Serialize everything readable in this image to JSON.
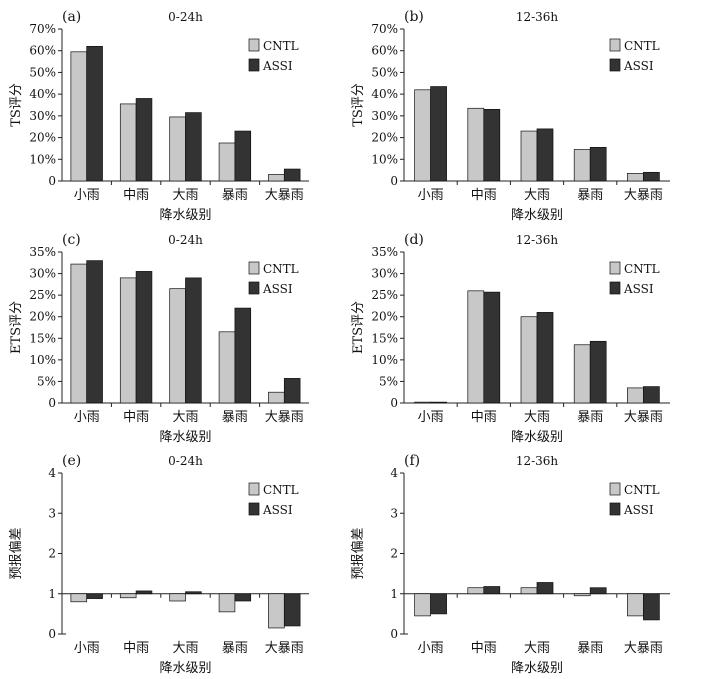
{
  "chart_data": [
    {
      "type": "bar",
      "panel_label": "(a)",
      "title": "0-24h",
      "ylabel": "TS评分",
      "xlabel": "降水级别",
      "categories": [
        "小雨",
        "中雨",
        "大雨",
        "暴雨",
        "大暴雨"
      ],
      "ylim": [
        0,
        70
      ],
      "yticks": [
        "0",
        "10%",
        "20%",
        "30%",
        "40%",
        "50%",
        "60%",
        "70%"
      ],
      "legend": "top-right",
      "series": [
        {
          "name": "CNTL",
          "color": "#c8c8c8",
          "values": [
            59.5,
            35.5,
            29.5,
            17.5,
            3
          ]
        },
        {
          "name": "ASSI",
          "color": "#333333",
          "values": [
            62,
            38,
            31.5,
            23,
            5.5
          ]
        }
      ]
    },
    {
      "type": "bar",
      "panel_label": "(b)",
      "title": "12-36h",
      "ylabel": "TS评分",
      "xlabel": "降水级别",
      "categories": [
        "小雨",
        "中雨",
        "大雨",
        "暴雨",
        "大暴雨"
      ],
      "ylim": [
        0,
        70
      ],
      "yticks": [
        "0",
        "10%",
        "20%",
        "30%",
        "40%",
        "50%",
        "60%",
        "70%"
      ],
      "legend": "top-right",
      "series": [
        {
          "name": "CNTL",
          "color": "#c8c8c8",
          "values": [
            42,
            33.5,
            23,
            14.5,
            3.5
          ]
        },
        {
          "name": "ASSI",
          "color": "#333333",
          "values": [
            43.5,
            33,
            24,
            15.5,
            4
          ]
        }
      ]
    },
    {
      "type": "bar",
      "panel_label": "(c)",
      "title": "0-24h",
      "ylabel": "ETS评分",
      "xlabel": "降水级别",
      "categories": [
        "小雨",
        "中雨",
        "大雨",
        "暴雨",
        "大暴雨"
      ],
      "ylim": [
        0,
        35
      ],
      "yticks": [
        "0",
        "5%",
        "10%",
        "15%",
        "20%",
        "25%",
        "30%",
        "35%"
      ],
      "legend": "top-right",
      "series": [
        {
          "name": "CNTL",
          "color": "#c8c8c8",
          "values": [
            32.2,
            29,
            26.5,
            16.5,
            2.5
          ]
        },
        {
          "name": "ASSI",
          "color": "#333333",
          "values": [
            33,
            30.5,
            29,
            22,
            5.7
          ]
        }
      ]
    },
    {
      "type": "bar",
      "panel_label": "(d)",
      "title": "12-36h",
      "ylabel": "ETS评分",
      "xlabel": "降水级别",
      "categories": [
        "小雨",
        "中雨",
        "大雨",
        "暴雨",
        "大暴雨"
      ],
      "ylim": [
        0,
        35
      ],
      "yticks": [
        "0",
        "5%",
        "10%",
        "15%",
        "20%",
        "25%",
        "30%",
        "35%"
      ],
      "legend": "top-right",
      "series": [
        {
          "name": "CNTL",
          "color": "#c8c8c8",
          "values": [
            0.2,
            26,
            20,
            13.5,
            3.5
          ]
        },
        {
          "name": "ASSI",
          "color": "#333333",
          "values": [
            0.2,
            25.7,
            21,
            14.3,
            3.8
          ]
        }
      ]
    },
    {
      "type": "bar",
      "panel_label": "(e)",
      "title": "0-24h",
      "ylabel": "预报偏差",
      "xlabel": "降水级别",
      "categories": [
        "小雨",
        "中雨",
        "大雨",
        "暴雨",
        "大暴雨"
      ],
      "ylim": [
        0,
        4
      ],
      "baseline": 1,
      "yticks": [
        "0",
        "1",
        "2",
        "3",
        "4"
      ],
      "legend": "top-right",
      "series": [
        {
          "name": "CNTL",
          "color": "#c8c8c8",
          "values": [
            0.8,
            0.9,
            0.82,
            0.55,
            0.15
          ]
        },
        {
          "name": "ASSI",
          "color": "#333333",
          "values": [
            0.88,
            1.07,
            1.05,
            0.82,
            0.2
          ]
        }
      ]
    },
    {
      "type": "bar",
      "panel_label": "(f)",
      "title": "12-36h",
      "ylabel": "预报偏差",
      "xlabel": "降水级别",
      "categories": [
        "小雨",
        "中雨",
        "大雨",
        "暴雨",
        "大暴雨"
      ],
      "ylim": [
        0,
        4
      ],
      "baseline": 1,
      "yticks": [
        "0",
        "1",
        "2",
        "3",
        "4"
      ],
      "legend": "top-right",
      "series": [
        {
          "name": "CNTL",
          "color": "#c8c8c8",
          "values": [
            0.45,
            1.15,
            1.15,
            0.95,
            0.45
          ]
        },
        {
          "name": "ASSI",
          "color": "#333333",
          "values": [
            0.5,
            1.18,
            1.28,
            1.15,
            0.35
          ]
        }
      ]
    }
  ]
}
